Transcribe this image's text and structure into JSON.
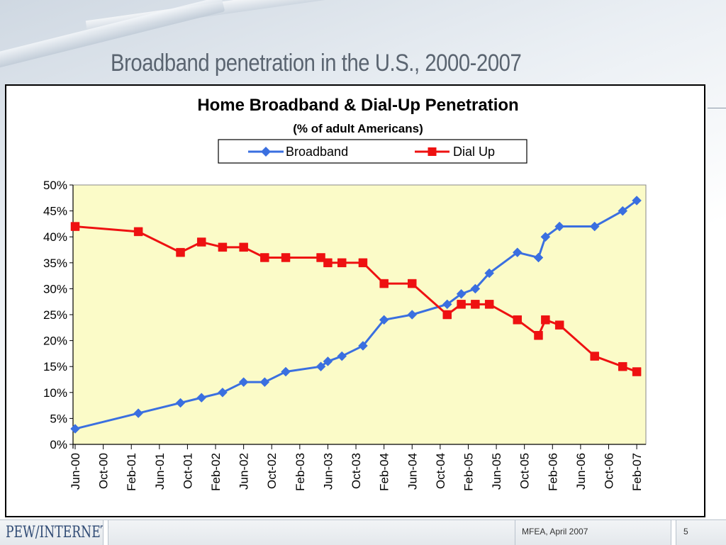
{
  "slide": {
    "title": "Broadband penetration in the U.S., 2000-2007"
  },
  "footer": {
    "logo_text": "PEW/INTERNET",
    "event": "MFEA, April 2007",
    "page_number": "5"
  },
  "colors": {
    "broadband": "#3a6fe0",
    "dialup": "#ee1111",
    "plot_bg": "#fbfbc8"
  },
  "chart_data": {
    "type": "line",
    "title": "Home Broadband & Dial-Up Penetration",
    "subtitle": "(% of adult Americans)",
    "legend_position": "top-center",
    "grid": false,
    "ylim": [
      0,
      50
    ],
    "yticks": [
      "0%",
      "5%",
      "10%",
      "15%",
      "20%",
      "25%",
      "30%",
      "35%",
      "40%",
      "45%",
      "50%"
    ],
    "xlim": [
      "2000-06",
      "2007-03"
    ],
    "xticks": [
      "Jun-00",
      "Oct-00",
      "Feb-01",
      "Jun-01",
      "Oct-01",
      "Feb-02",
      "Jun-02",
      "Oct-02",
      "Feb-03",
      "Jun-03",
      "Oct-03",
      "Feb-04",
      "Jun-04",
      "Oct-04",
      "Feb-05",
      "Jun-05",
      "Oct-05",
      "Feb-06",
      "Jun-06",
      "Oct-06",
      "Feb-07"
    ],
    "series": [
      {
        "name": "Broadband",
        "marker": "diamond",
        "color": "#3a6fe0",
        "points": [
          {
            "x": "2000-06",
            "y": 3
          },
          {
            "x": "2001-03",
            "y": 6
          },
          {
            "x": "2001-09",
            "y": 8
          },
          {
            "x": "2001-12",
            "y": 9
          },
          {
            "x": "2002-03",
            "y": 10
          },
          {
            "x": "2002-06",
            "y": 12
          },
          {
            "x": "2002-09",
            "y": 12
          },
          {
            "x": "2002-12",
            "y": 14
          },
          {
            "x": "2003-05",
            "y": 15
          },
          {
            "x": "2003-06",
            "y": 16
          },
          {
            "x": "2003-08",
            "y": 17
          },
          {
            "x": "2003-11",
            "y": 19
          },
          {
            "x": "2004-02",
            "y": 24
          },
          {
            "x": "2004-06",
            "y": 25
          },
          {
            "x": "2004-11",
            "y": 27
          },
          {
            "x": "2005-01",
            "y": 29
          },
          {
            "x": "2005-03",
            "y": 30
          },
          {
            "x": "2005-05",
            "y": 33
          },
          {
            "x": "2005-09",
            "y": 37
          },
          {
            "x": "2005-12",
            "y": 36
          },
          {
            "x": "2006-01",
            "y": 40
          },
          {
            "x": "2006-03",
            "y": 42
          },
          {
            "x": "2006-08",
            "y": 42
          },
          {
            "x": "2006-12",
            "y": 45
          },
          {
            "x": "2007-02",
            "y": 47
          }
        ]
      },
      {
        "name": "Dial Up",
        "marker": "square",
        "color": "#ee1111",
        "points": [
          {
            "x": "2000-06",
            "y": 42
          },
          {
            "x": "2001-03",
            "y": 41
          },
          {
            "x": "2001-09",
            "y": 37
          },
          {
            "x": "2001-12",
            "y": 39
          },
          {
            "x": "2002-03",
            "y": 38
          },
          {
            "x": "2002-06",
            "y": 38
          },
          {
            "x": "2002-09",
            "y": 36
          },
          {
            "x": "2002-12",
            "y": 36
          },
          {
            "x": "2003-05",
            "y": 36
          },
          {
            "x": "2003-06",
            "y": 35
          },
          {
            "x": "2003-08",
            "y": 35
          },
          {
            "x": "2003-11",
            "y": 35
          },
          {
            "x": "2004-02",
            "y": 31
          },
          {
            "x": "2004-06",
            "y": 31
          },
          {
            "x": "2004-11",
            "y": 25
          },
          {
            "x": "2005-01",
            "y": 27
          },
          {
            "x": "2005-03",
            "y": 27
          },
          {
            "x": "2005-05",
            "y": 27
          },
          {
            "x": "2005-09",
            "y": 24
          },
          {
            "x": "2005-12",
            "y": 21
          },
          {
            "x": "2006-01",
            "y": 24
          },
          {
            "x": "2006-03",
            "y": 23
          },
          {
            "x": "2006-08",
            "y": 17
          },
          {
            "x": "2006-12",
            "y": 15
          },
          {
            "x": "2007-02",
            "y": 14
          }
        ]
      }
    ]
  }
}
